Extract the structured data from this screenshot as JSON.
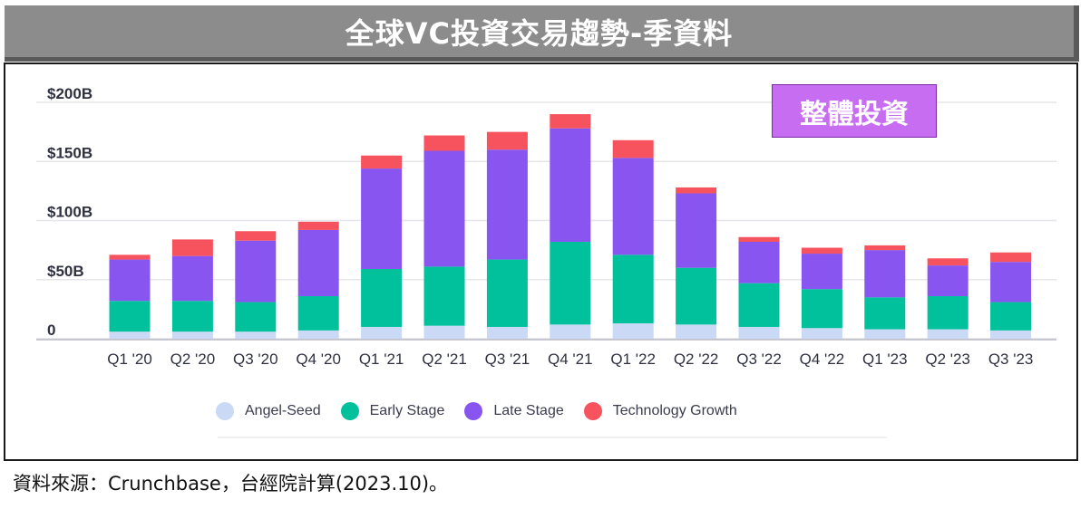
{
  "title": "全球VC投資交易趨勢-季資料",
  "badge": "整體投資",
  "source_note": "資料來源：Crunchbase，台經院計算(2023.10)。",
  "colors": {
    "angel_seed": "#c9d9f6",
    "early_stage": "#00c19c",
    "late_stage": "#8855f1",
    "technology_growth": "#f6535f",
    "gridline": "#e6e6ea",
    "badge": "#c76df2"
  },
  "chart_data": {
    "type": "bar",
    "stacked": true,
    "categories": [
      "Q1 '20",
      "Q2 '20",
      "Q3 '20",
      "Q4 '20",
      "Q1 '21",
      "Q2 '21",
      "Q3 '21",
      "Q4 '21",
      "Q1 '22",
      "Q2 '22",
      "Q3 '22",
      "Q4 '22",
      "Q1 '23",
      "Q2 '23",
      "Q3 '23"
    ],
    "series": [
      {
        "name": "Angel-Seed",
        "color": "#c9d9f6",
        "values": [
          6,
          6,
          6,
          7,
          10,
          11,
          10,
          12,
          13,
          12,
          10,
          9,
          8,
          8,
          7
        ]
      },
      {
        "name": "Early Stage",
        "color": "#00c19c",
        "values": [
          26,
          26,
          25,
          29,
          49,
          50,
          57,
          70,
          58,
          48,
          37,
          33,
          27,
          28,
          24
        ]
      },
      {
        "name": "Late Stage",
        "color": "#8855f1",
        "values": [
          35,
          38,
          52,
          56,
          85,
          98,
          93,
          96,
          82,
          63,
          35,
          30,
          40,
          26,
          34
        ]
      },
      {
        "name": "Technology Growth",
        "color": "#f6535f",
        "values": [
          4,
          14,
          8,
          7,
          11,
          13,
          15,
          12,
          15,
          5,
          4,
          5,
          4,
          6,
          8
        ]
      }
    ],
    "yticks": [
      "0",
      "$50B",
      "$100B",
      "$150B",
      "$200B"
    ],
    "ytick_values": [
      0,
      50,
      100,
      150,
      200
    ],
    "ylim": [
      0,
      200
    ],
    "grid": true,
    "legend": "bottom"
  }
}
